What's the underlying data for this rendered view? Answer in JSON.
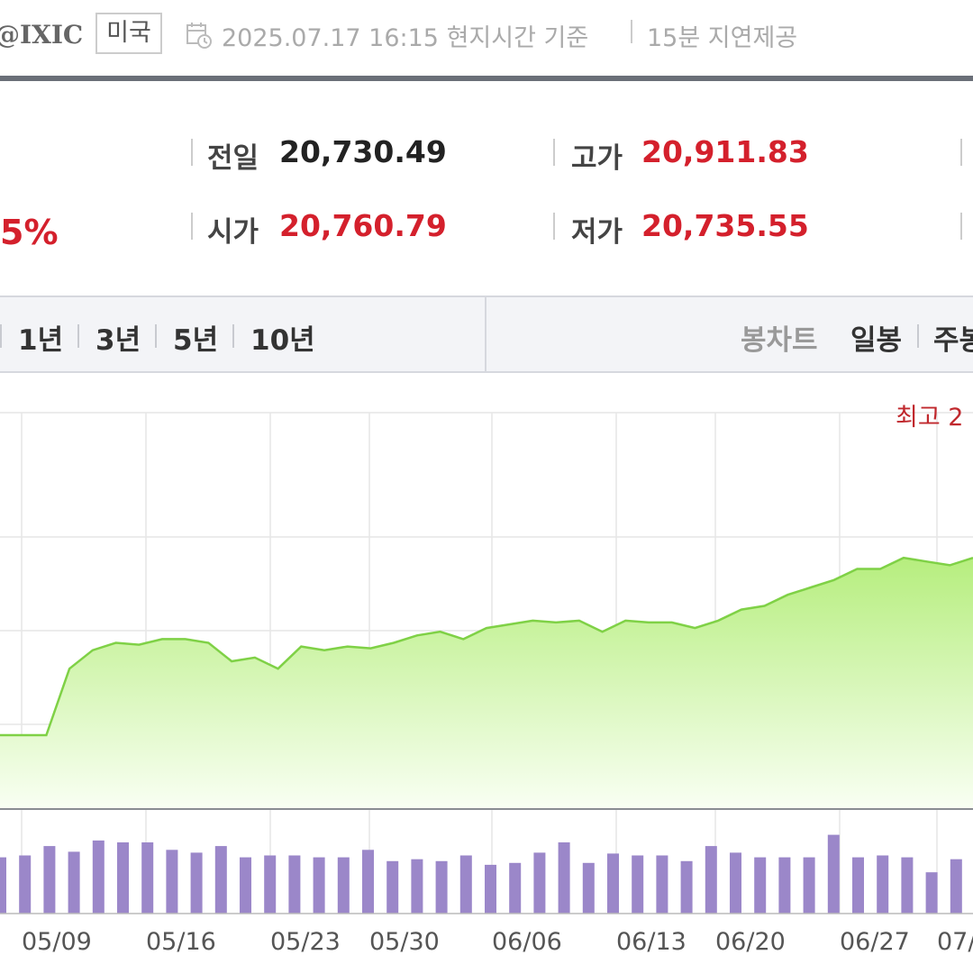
{
  "header": {
    "symbol": "@IXIC",
    "country": "미국",
    "calendar_icon": "calendar-clock-icon",
    "datetime": "2025.07.17 16:15 현지시간 기준",
    "delay": "15분 지연제공"
  },
  "price": {
    "change_pct": "5%",
    "prev_close_label": "전일",
    "prev_close": "20,730.49",
    "high_label": "고가",
    "high": "20,911.83",
    "open_label": "시가",
    "open": "20,760.79",
    "low_label": "저가",
    "low": "20,735.55"
  },
  "periods": [
    "1년",
    "3년",
    "5년",
    "10년"
  ],
  "chart_types": {
    "candle_label": "봉차트",
    "daily_label": "일봉",
    "weekly_label": "주봉"
  },
  "colors": {
    "accent_red": "#d4202c",
    "line_green": "#7fd146",
    "volume_purple": "#9b87c9"
  },
  "chart_data": {
    "type": "area",
    "x_tick_labels": [
      "05/09",
      "05/16",
      "05/23",
      "05/30",
      "06/06",
      "06/13",
      "06/20",
      "06/27",
      "07/"
    ],
    "max_annotation": "최고 2",
    "price_line": [
      0.2,
      0.2,
      0.2,
      0.38,
      0.43,
      0.45,
      0.445,
      0.46,
      0.46,
      0.45,
      0.4,
      0.41,
      0.38,
      0.44,
      0.43,
      0.44,
      0.435,
      0.45,
      0.47,
      0.48,
      0.46,
      0.49,
      0.5,
      0.51,
      0.505,
      0.51,
      0.48,
      0.51,
      0.505,
      0.505,
      0.49,
      0.51,
      0.54,
      0.55,
      0.58,
      0.6,
      0.62,
      0.65,
      0.65,
      0.68,
      0.67,
      0.66,
      0.68
    ],
    "volume": [
      0.6,
      0.62,
      0.72,
      0.66,
      0.78,
      0.76,
      0.76,
      0.68,
      0.65,
      0.72,
      0.6,
      0.62,
      0.62,
      0.6,
      0.6,
      0.68,
      0.56,
      0.58,
      0.56,
      0.62,
      0.52,
      0.54,
      0.65,
      0.76,
      0.54,
      0.64,
      0.62,
      0.62,
      0.56,
      0.72,
      0.65,
      0.6,
      0.6,
      0.6,
      0.84,
      0.6,
      0.62,
      0.6,
      0.44,
      0.58
    ],
    "grid": true
  }
}
